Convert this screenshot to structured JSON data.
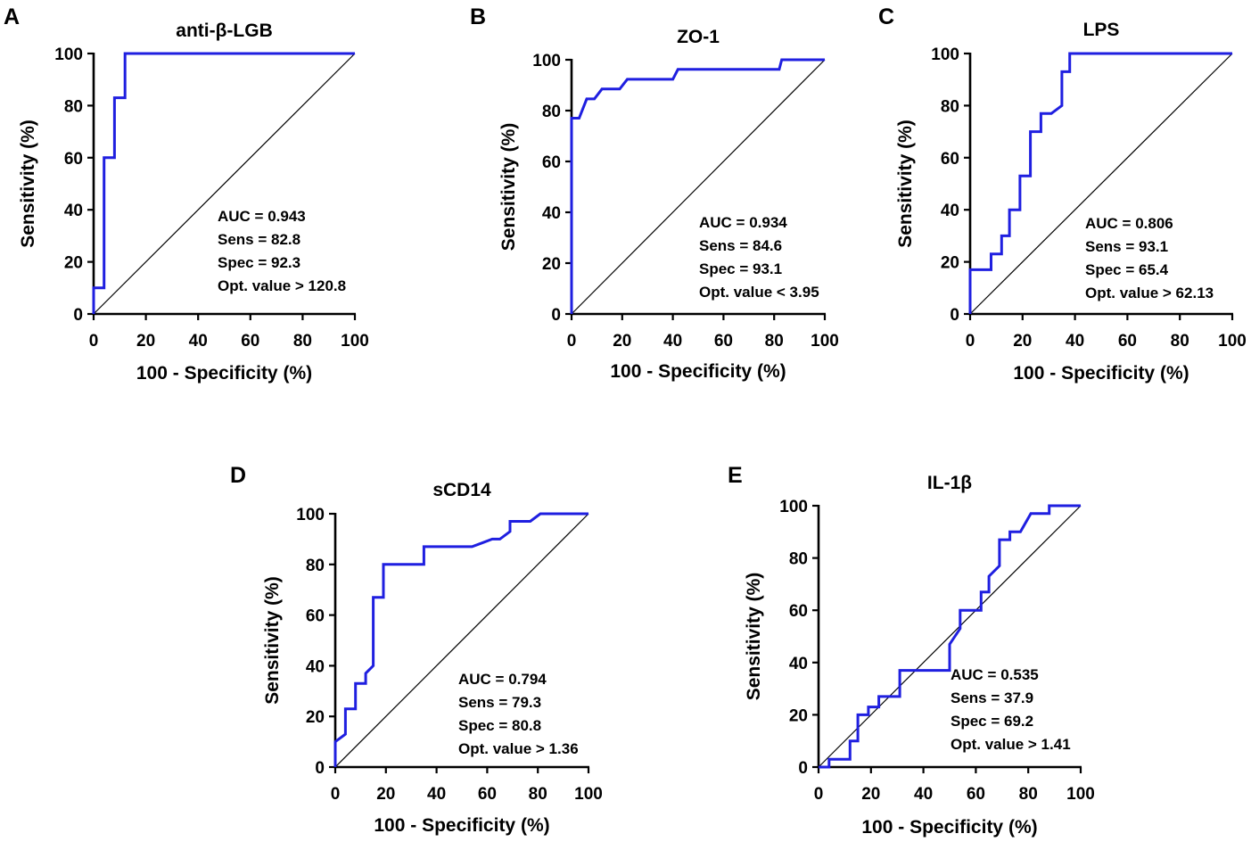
{
  "figure": {
    "xlabel": "100 - Specificity (%)",
    "ylabel": "Sensitivity (%)",
    "ticks": [
      "0",
      "20",
      "40",
      "60",
      "80",
      "100"
    ]
  },
  "chart_data": [
    {
      "type": "line",
      "panel": "A",
      "title": "anti-β-LGB",
      "xlabel": "100 - Specificity (%)",
      "ylabel": "Sensitivity (%)",
      "xlim": [
        0,
        100
      ],
      "ylim": [
        0,
        100
      ],
      "x": [
        0,
        0,
        4,
        4,
        8,
        8,
        12,
        12,
        100
      ],
      "y": [
        0,
        10,
        10,
        60,
        60,
        83,
        83,
        100,
        100
      ],
      "stats": [
        "AUC = 0.943",
        "Sens = 82.8",
        "Spec = 92.3",
        "Opt. value > 120.8"
      ]
    },
    {
      "type": "line",
      "panel": "B",
      "title": "ZO-1",
      "xlabel": "100 - Specificity (%)",
      "ylabel": "Sensitivity (%)",
      "xlim": [
        0,
        100
      ],
      "ylim": [
        0,
        100
      ],
      "x": [
        0,
        0,
        3,
        6,
        9,
        12,
        19,
        22,
        40,
        42,
        82,
        83,
        100
      ],
      "y": [
        0,
        77,
        77,
        84.6,
        84.6,
        88.5,
        88.5,
        92.3,
        92.3,
        96.2,
        96.2,
        100,
        100
      ],
      "stats": [
        "AUC = 0.934",
        "Sens = 84.6",
        "Spec = 93.1",
        "Opt. value < 3.95"
      ]
    },
    {
      "type": "line",
      "panel": "C",
      "title": "LPS",
      "xlabel": "100 - Specificity (%)",
      "ylabel": "Sensitivity (%)",
      "xlim": [
        0,
        100
      ],
      "ylim": [
        0,
        100
      ],
      "x": [
        0,
        0,
        8,
        8,
        12,
        12,
        15,
        15,
        19,
        19,
        23,
        23,
        27,
        27,
        31,
        35,
        35,
        38,
        38,
        100
      ],
      "y": [
        0,
        17,
        17,
        23,
        23,
        30,
        30,
        40,
        40,
        53,
        53,
        70,
        70,
        77,
        77,
        80,
        93,
        93,
        100,
        100
      ],
      "stats": [
        "AUC = 0.806",
        "Sens = 93.1",
        "Spec = 65.4",
        "Opt. value > 62.13"
      ]
    },
    {
      "type": "line",
      "panel": "D",
      "title": "sCD14",
      "xlabel": "100 - Specificity (%)",
      "ylabel": "Sensitivity (%)",
      "xlim": [
        0,
        100
      ],
      "ylim": [
        0,
        100
      ],
      "x": [
        0,
        0,
        4,
        4,
        8,
        8,
        12,
        12,
        15,
        15,
        19,
        19,
        35,
        35,
        54,
        58,
        62,
        65,
        69,
        69,
        77,
        81,
        100
      ],
      "y": [
        0,
        10,
        13,
        23,
        23,
        33,
        33,
        37,
        40,
        67,
        67,
        80,
        80,
        87,
        87,
        88.5,
        90,
        90,
        93,
        97,
        97,
        100,
        100
      ],
      "stats": [
        "AUC = 0.794",
        "Sens = 79.3",
        "Spec = 80.8",
        "Opt. value > 1.36"
      ]
    },
    {
      "type": "line",
      "panel": "E",
      "title": "IL-1β",
      "xlabel": "100 - Specificity (%)",
      "ylabel": "Sensitivity (%)",
      "xlim": [
        0,
        100
      ],
      "ylim": [
        0,
        100
      ],
      "x": [
        0,
        4,
        4,
        12,
        12,
        15,
        15,
        19,
        19,
        23,
        23,
        27,
        27,
        31,
        31,
        50,
        50,
        54,
        54,
        62,
        62,
        65,
        65,
        69,
        69,
        73,
        73,
        77,
        81,
        88,
        88,
        100
      ],
      "y": [
        0,
        0,
        3,
        3,
        10,
        10,
        20,
        20,
        23,
        23,
        27,
        27,
        27,
        27,
        37,
        37,
        47,
        53,
        60,
        60,
        67,
        67,
        73,
        77,
        87,
        87,
        90,
        90,
        97,
        97,
        100,
        100
      ],
      "stats": [
        "AUC = 0.535",
        "Sens = 37.9",
        "Spec = 69.2",
        "Opt. value > 1.41"
      ]
    }
  ]
}
